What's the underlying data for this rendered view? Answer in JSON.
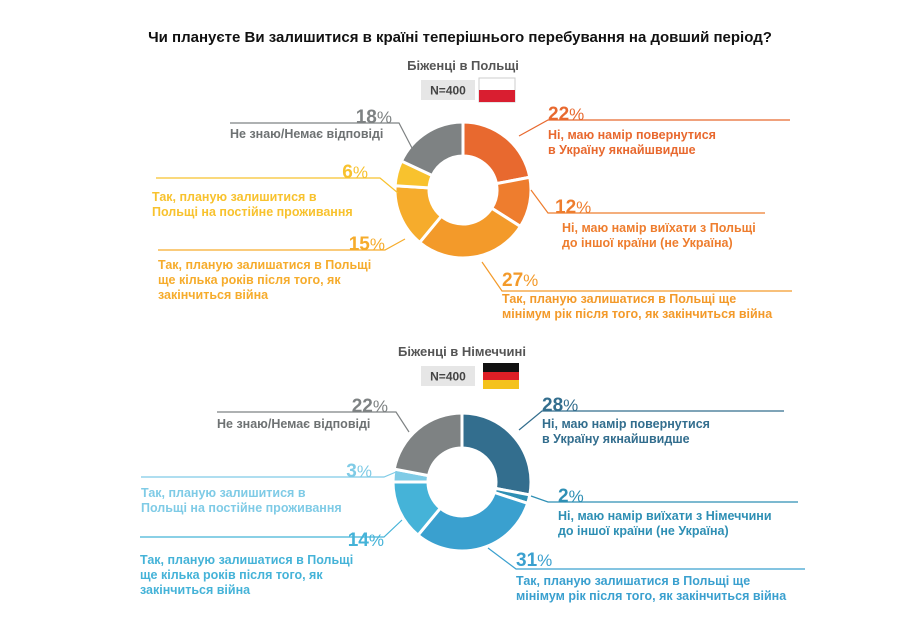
{
  "title": "Чи плануєте Ви залишитися в країні теперішнього перебування на довший період?",
  "colors": {
    "pl_return": "#e8692f",
    "pl_move": "#ee7d2e",
    "pl_27": "#f39a2a",
    "pl_15": "#f6ac2c",
    "pl_6": "#f8c22e",
    "de_return": "#336e8e",
    "de_move": "#2e8fb4",
    "de_31": "#3aa0cf",
    "de_14": "#45b3d8",
    "de_3": "#7fcbe6",
    "grey": "#7e8283",
    "line_grey": "#888888"
  },
  "chart_data": [
    {
      "type": "pie",
      "subtitle": "Біженці в Польщі",
      "n_label": "N=400",
      "flag_icon": "poland-flag-icon",
      "unit": "%",
      "slices": [
        {
          "value": 22,
          "label_lines": [
            "Ні, маю намір повернутися",
            "в Україну якнайшвидше"
          ],
          "color_key": "pl_return"
        },
        {
          "value": 12,
          "label_lines": [
            "Ні, маю намір виїхати з Польщі",
            "до іншої країни (не Україна)"
          ],
          "color_key": "pl_move"
        },
        {
          "value": 27,
          "label_lines": [
            "Так, планую залишатися в Польщі ще",
            "мінімум рік після того, як закінчиться війна"
          ],
          "color_key": "pl_27"
        },
        {
          "value": 15,
          "label_lines": [
            "Так, планую залишатися в Польщі",
            "ще кілька років після того, як",
            "закінчиться війна"
          ],
          "color_key": "pl_15"
        },
        {
          "value": 6,
          "label_lines": [
            "Так, планую залишитися в",
            "Польщі на постійне проживання"
          ],
          "color_key": "pl_6"
        },
        {
          "value": 18,
          "label_lines": [
            "Не знаю/Немає відповіді"
          ],
          "color_key": "grey"
        }
      ]
    },
    {
      "type": "pie",
      "subtitle": "Біженці в Німеччині",
      "n_label": "N=400",
      "flag_icon": "germany-flag-icon",
      "unit": "%",
      "slices": [
        {
          "value": 28,
          "label_lines": [
            "Ні, маю намір повернутися",
            "в Україну якнайшвидше"
          ],
          "color_key": "de_return"
        },
        {
          "value": 2,
          "label_lines": [
            "Ні, маю намір виїхати з Німеччини",
            "до іншої країни (не Україна)"
          ],
          "color_key": "de_move"
        },
        {
          "value": 31,
          "label_lines": [
            "Так, планую залишатися в Польщі ще",
            "мінімум рік після того, як закінчиться війна"
          ],
          "color_key": "de_31"
        },
        {
          "value": 14,
          "label_lines": [
            "Так, планую залишатися в Польщі",
            "ще кілька років після того, як",
            "закінчиться війна"
          ],
          "color_key": "de_14"
        },
        {
          "value": 3,
          "label_lines": [
            "Так, планую залишитися в",
            "Польщі на постійне проживання"
          ],
          "color_key": "de_3"
        },
        {
          "value": 22,
          "label_lines": [
            "Не знаю/Немає відповіді"
          ],
          "color_key": "grey"
        }
      ]
    }
  ]
}
